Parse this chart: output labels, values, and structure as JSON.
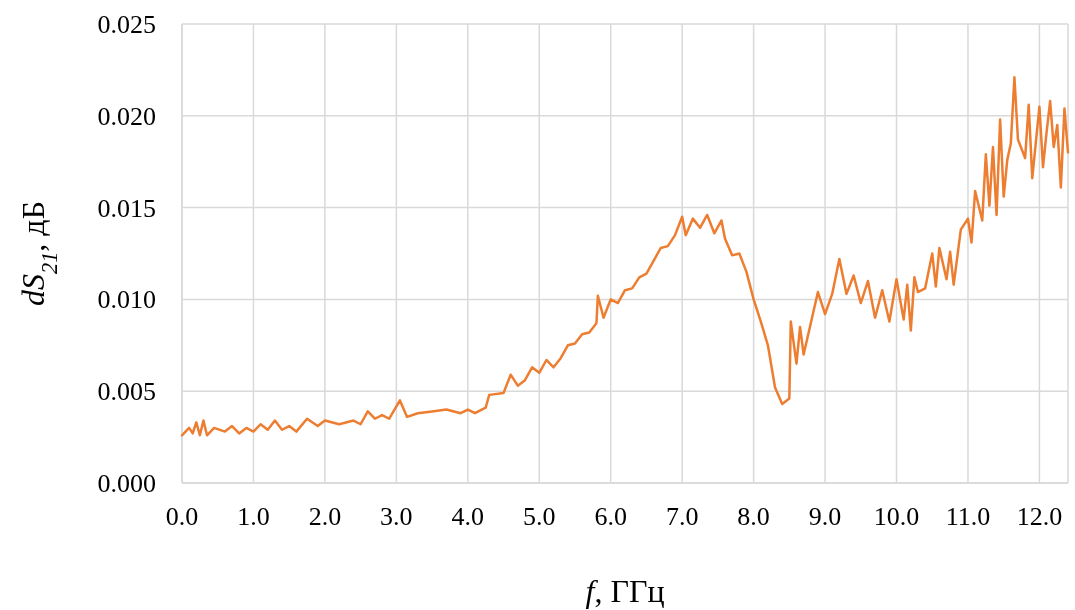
{
  "chart_data": {
    "type": "line",
    "xlabel": "f, ГГц",
    "ylabel": "dS$_{21}$, дБ",
    "xlim": [
      0,
      12.4
    ],
    "ylim": [
      0,
      0.025
    ],
    "xticks": [
      {
        "value": 0,
        "label": "0.0"
      },
      {
        "value": 1,
        "label": "1.0"
      },
      {
        "value": 2,
        "label": "2.0"
      },
      {
        "value": 3,
        "label": "3.0"
      },
      {
        "value": 4,
        "label": "4.0"
      },
      {
        "value": 5,
        "label": "5.0"
      },
      {
        "value": 6,
        "label": "6.0"
      },
      {
        "value": 7,
        "label": "7.0"
      },
      {
        "value": 8,
        "label": "8.0"
      },
      {
        "value": 9,
        "label": "9.0"
      },
      {
        "value": 10,
        "label": "10.0"
      },
      {
        "value": 11,
        "label": "11.0"
      },
      {
        "value": 12,
        "label": "12.0"
      }
    ],
    "yticks": [
      {
        "value": 0,
        "label": "0.000"
      },
      {
        "value": 0.005,
        "label": "0.005"
      },
      {
        "value": 0.01,
        "label": "0.010"
      },
      {
        "value": 0.015,
        "label": "0.015"
      },
      {
        "value": 0.02,
        "label": "0.020"
      },
      {
        "value": 0.025,
        "label": "0.025"
      }
    ],
    "grid": true,
    "series": [
      {
        "color": "#ed7d31",
        "x": [
          0,
          0.1,
          0.15,
          0.2,
          0.25,
          0.3,
          0.35,
          0.45,
          0.6,
          0.7,
          0.8,
          0.9,
          1.0,
          1.1,
          1.2,
          1.3,
          1.4,
          1.5,
          1.6,
          1.75,
          1.9,
          2.0,
          2.2,
          2.4,
          2.5,
          2.6,
          2.7,
          2.8,
          2.9,
          3.05,
          3.15,
          3.3,
          3.5,
          3.7,
          3.9,
          4.0,
          4.1,
          4.25,
          4.3,
          4.5,
          4.6,
          4.7,
          4.8,
          4.9,
          5.0,
          5.1,
          5.2,
          5.3,
          5.4,
          5.5,
          5.6,
          5.7,
          5.8,
          5.82,
          5.9,
          6.0,
          6.1,
          6.2,
          6.3,
          6.4,
          6.5,
          6.6,
          6.7,
          6.8,
          6.9,
          7.0,
          7.05,
          7.15,
          7.25,
          7.35,
          7.45,
          7.55,
          7.6,
          7.7,
          7.8,
          7.9,
          8.0,
          8.1,
          8.2,
          8.3,
          8.4,
          8.5,
          8.52,
          8.6,
          8.65,
          8.7,
          8.8,
          8.9,
          9.0,
          9.1,
          9.2,
          9.3,
          9.4,
          9.5,
          9.6,
          9.7,
          9.8,
          9.9,
          10.0,
          10.1,
          10.15,
          10.2,
          10.25,
          10.3,
          10.4,
          10.5,
          10.55,
          10.6,
          10.7,
          10.75,
          10.8,
          10.9,
          11.0,
          11.05,
          11.1,
          11.2,
          11.25,
          11.3,
          11.35,
          11.4,
          11.45,
          11.5,
          11.55,
          11.6,
          11.65,
          11.7,
          11.8,
          11.85,
          11.9,
          12.0,
          12.05,
          12.1,
          12.15,
          12.2,
          12.25,
          12.3,
          12.35,
          12.4
        ],
        "values": [
          0.0026,
          0.003,
          0.0027,
          0.0033,
          0.0026,
          0.0034,
          0.0026,
          0.003,
          0.0028,
          0.0031,
          0.0027,
          0.003,
          0.0028,
          0.0032,
          0.0029,
          0.0034,
          0.0029,
          0.0031,
          0.0028,
          0.0035,
          0.0031,
          0.0034,
          0.0032,
          0.0034,
          0.0032,
          0.0039,
          0.0035,
          0.0037,
          0.0035,
          0.0045,
          0.0036,
          0.0038,
          0.0039,
          0.004,
          0.0038,
          0.004,
          0.0038,
          0.0041,
          0.0048,
          0.0049,
          0.0059,
          0.0053,
          0.0056,
          0.0063,
          0.006,
          0.0067,
          0.0063,
          0.0068,
          0.0075,
          0.0076,
          0.0081,
          0.0082,
          0.0087,
          0.0102,
          0.009,
          0.01,
          0.0098,
          0.0105,
          0.0106,
          0.0112,
          0.0114,
          0.0121,
          0.0128,
          0.0129,
          0.0135,
          0.0145,
          0.0135,
          0.0144,
          0.0139,
          0.0146,
          0.0136,
          0.0143,
          0.0133,
          0.0124,
          0.0125,
          0.0115,
          0.01,
          0.0088,
          0.0075,
          0.0052,
          0.0043,
          0.0046,
          0.0088,
          0.0065,
          0.0085,
          0.007,
          0.0087,
          0.0104,
          0.0092,
          0.0103,
          0.0122,
          0.0103,
          0.0113,
          0.0098,
          0.011,
          0.009,
          0.0105,
          0.0088,
          0.0111,
          0.0089,
          0.0108,
          0.0083,
          0.0112,
          0.0104,
          0.0106,
          0.0125,
          0.0107,
          0.0128,
          0.0111,
          0.0126,
          0.0108,
          0.0138,
          0.0144,
          0.0131,
          0.0159,
          0.0143,
          0.0179,
          0.0151,
          0.0183,
          0.0146,
          0.0198,
          0.0156,
          0.0176,
          0.0185,
          0.0221,
          0.0187,
          0.0177,
          0.0206,
          0.0166,
          0.0205,
          0.0172,
          0.0191,
          0.0208,
          0.0183,
          0.0195,
          0.0161,
          0.0204,
          0.018
        ]
      }
    ]
  }
}
